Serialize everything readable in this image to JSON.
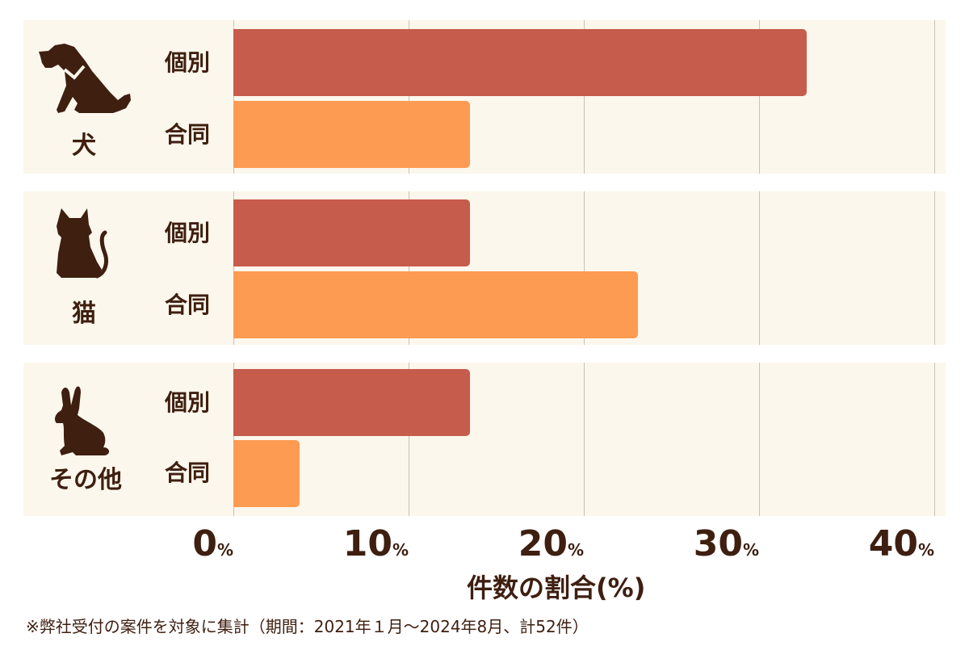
{
  "chart_data": {
    "type": "bar",
    "orientation": "horizontal",
    "title": "",
    "xlabel": "件数の割合(%)",
    "ylabel": "",
    "xlim": [
      0,
      40
    ],
    "grid": true,
    "legend": "none (series labels shown beside each bar)",
    "categories": [
      "犬",
      "猫",
      "その他"
    ],
    "series": [
      {
        "name": "個別",
        "color": "#c65c4c",
        "values": [
          32.7,
          13.5,
          13.5
        ]
      },
      {
        "name": "合同",
        "color": "#fe9b52",
        "values": [
          13.5,
          23.1,
          3.8
        ]
      }
    ],
    "x_ticks": [
      "0%",
      "10%",
      "20%",
      "30%",
      "40%"
    ],
    "footnote": "※弊社受付の案件を対象に集計（期間：2021年１月〜2024年8月、計52件）"
  },
  "groups": [
    {
      "label": "犬",
      "icon": "dog-icon",
      "bars": [
        {
          "series": "個別",
          "value": 32.7
        },
        {
          "series": "合同",
          "value": 13.5
        }
      ]
    },
    {
      "label": "猫",
      "icon": "cat-icon",
      "bars": [
        {
          "series": "個別",
          "value": 13.5
        },
        {
          "series": "合同",
          "value": 23.1
        }
      ]
    },
    {
      "label": "その他",
      "icon": "rabbit-icon",
      "bars": [
        {
          "series": "個別",
          "value": 13.5
        },
        {
          "series": "合同",
          "value": 3.8
        }
      ]
    }
  ],
  "ticks": [
    {
      "num": "0",
      "unit": "%"
    },
    {
      "num": "10",
      "unit": "%"
    },
    {
      "num": "20",
      "unit": "%"
    },
    {
      "num": "30",
      "unit": "%"
    },
    {
      "num": "40",
      "unit": "%"
    }
  ],
  "axis": {
    "label": "件数の割合(%)"
  },
  "footnote": "※弊社受付の案件を対象に集計（期間：2021年１月〜2024年8月、計52件）",
  "colors": {
    "kobetsu": "#c65c4c",
    "godo": "#fe9b52",
    "text": "#3e1f10",
    "panel": "#fcf7ec",
    "grid": "#c7c2ba"
  }
}
